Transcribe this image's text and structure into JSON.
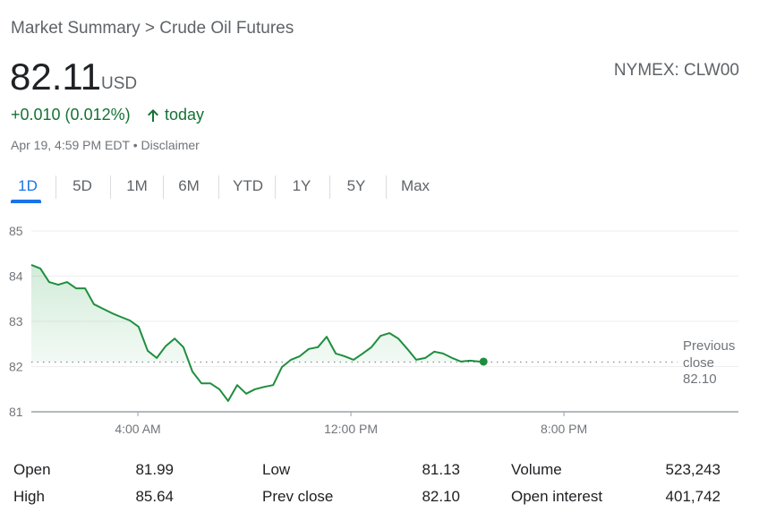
{
  "breadcrumb": "Market Summary > Crude Oil Futures",
  "price": "82.11",
  "currency": "USD",
  "exchange": "NYMEX: CLW00",
  "change": "+0.010 (0.012%)",
  "change_period": "today",
  "timestamp": "Apr 19, 4:59 PM EDT",
  "separator": "•",
  "disclaimer": "Disclaimer",
  "tabs": [
    "1D",
    "5D",
    "1M",
    "6M",
    "YTD",
    "1Y",
    "5Y",
    "Max"
  ],
  "active_tab": 0,
  "stats": [
    [
      "Open",
      "81.99"
    ],
    [
      "High",
      "85.64"
    ],
    [
      "Low",
      "81.13"
    ],
    [
      "Prev close",
      "82.10"
    ],
    [
      "Volume",
      "523,243"
    ],
    [
      "Open interest",
      "401,742"
    ]
  ],
  "chart_data": {
    "type": "line",
    "x": [
      0,
      0.34,
      0.67,
      1.01,
      1.34,
      1.68,
      2.02,
      2.35,
      2.69,
      3.03,
      3.36,
      3.7,
      4.03,
      4.37,
      4.71,
      5.04,
      5.38,
      5.71,
      6.05,
      6.39,
      6.72,
      7.06,
      7.39,
      7.73,
      8.07,
      8.4,
      8.74,
      9.08,
      9.41,
      9.75,
      10.08,
      10.42,
      10.76,
      11.09,
      11.43,
      11.76,
      12.1,
      12.44,
      12.77,
      13.11,
      13.45,
      13.78,
      14.12,
      14.45,
      14.79,
      15.13,
      15.46,
      15.8,
      16.13,
      16.47,
      16.81,
      16.98
    ],
    "values": [
      84.25,
      84.17,
      83.87,
      83.81,
      83.87,
      83.73,
      83.73,
      83.38,
      83.28,
      83.18,
      83.1,
      83.02,
      82.88,
      82.35,
      82.19,
      82.45,
      82.62,
      82.43,
      81.89,
      81.63,
      81.63,
      81.5,
      81.24,
      81.59,
      81.4,
      81.5,
      81.55,
      81.59,
      81.99,
      82.15,
      82.23,
      82.39,
      82.43,
      82.66,
      82.29,
      82.23,
      82.15,
      82.29,
      82.43,
      82.68,
      82.74,
      82.62,
      82.39,
      82.15,
      82.19,
      82.33,
      82.29,
      82.19,
      82.11,
      82.13,
      82.11,
      82.11
    ],
    "color": "#1e8e3e",
    "xlim": [
      0,
      26.55
    ],
    "xticks": [
      {
        "value": 4,
        "label": "4:00 AM"
      },
      {
        "value": 12,
        "label": "12:00 PM"
      },
      {
        "value": 20,
        "label": "8:00 PM"
      }
    ],
    "ylim": [
      81,
      85
    ],
    "yticks": [
      81,
      82,
      83,
      84,
      85
    ],
    "grid": true,
    "previous_close_label": "Previous close",
    "previous_close": {
      "value": 82.1,
      "label": "82.10"
    }
  }
}
